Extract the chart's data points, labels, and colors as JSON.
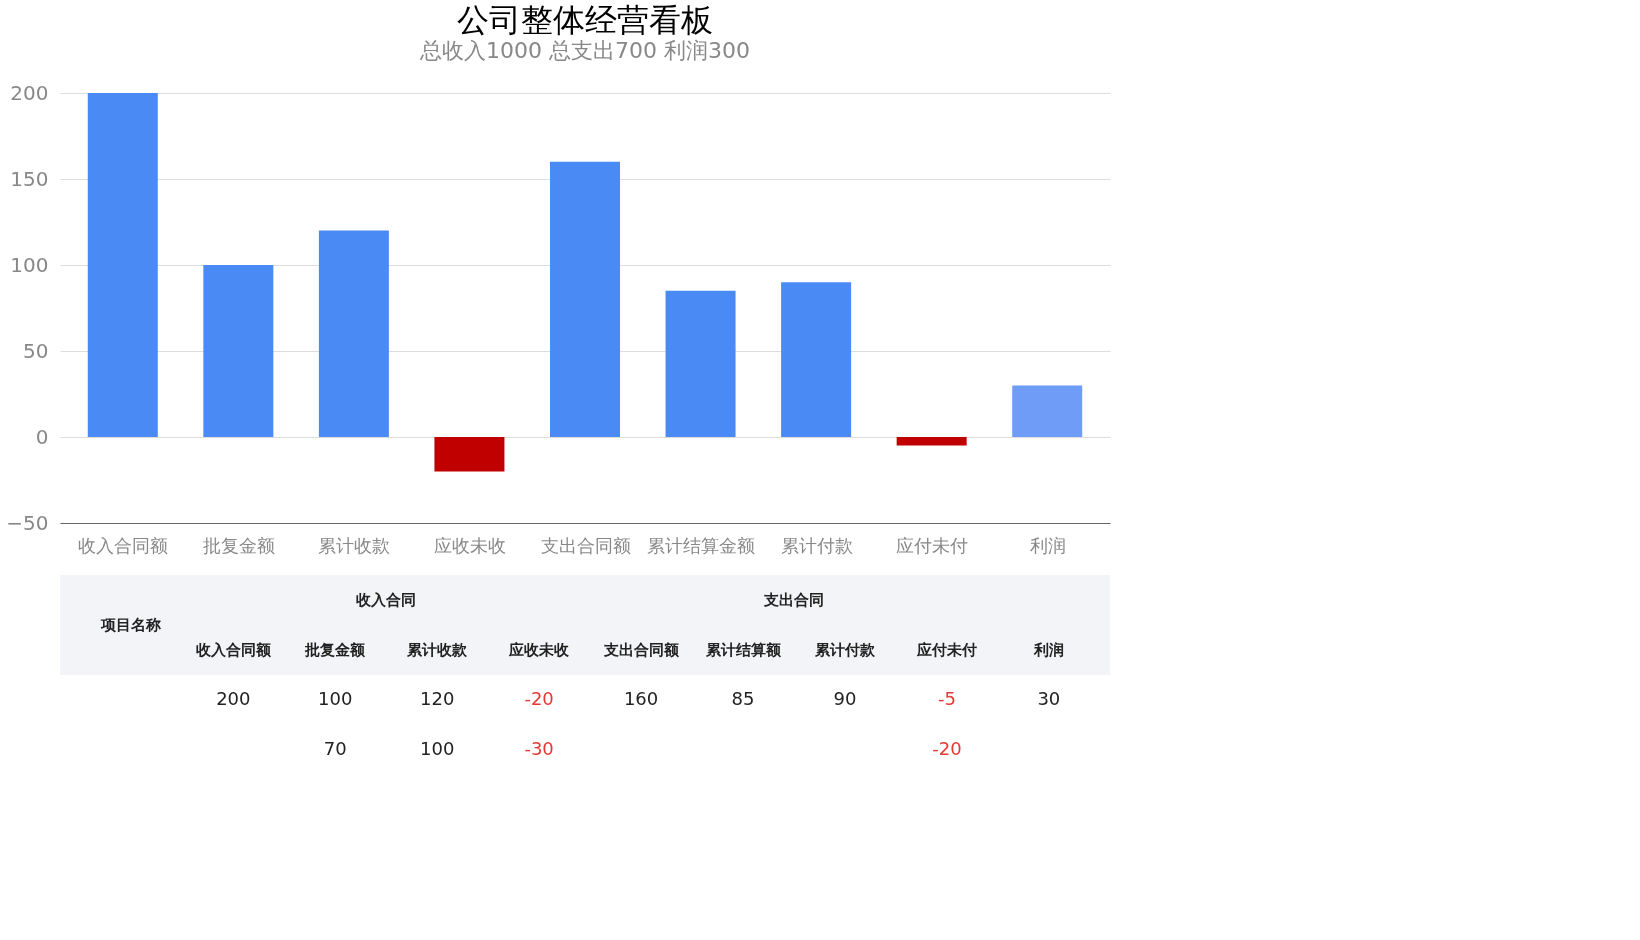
{
  "chart_data": [
    {
      "type": "bar",
      "title": "公司整体经营看板",
      "subtitle": "总收入1000    总支出700    利润300",
      "categories": [
        "收入合同额",
        "批复金额",
        "累计收款",
        "应收未收",
        "支出合同额",
        "累计结算金额",
        "累计付款",
        "应付未付",
        "利润"
      ],
      "values": [
        200,
        100,
        120,
        -20,
        160,
        85,
        90,
        -5,
        30
      ],
      "colors": [
        "#4a8af4",
        "#4a8af4",
        "#4a8af4",
        "#c00000",
        "#4a8af4",
        "#4a8af4",
        "#4a8af4",
        "#c00000",
        "#6e9cf7"
      ],
      "ylim": [
        -50,
        200
      ],
      "yticks": [
        -50,
        0,
        50,
        100,
        150,
        200
      ],
      "grid": "y"
    },
    {
      "type": "other",
      "annotations": [
        "项目名称",
        "收入合同",
        "支出合同"
      ],
      "categories": [
        "收入合同额",
        "批复金额",
        "累计收款",
        "应收未收",
        "支出合同额",
        "累计结算额",
        "累计付款",
        "应付未付",
        "利润"
      ],
      "series": [
        {
          "values": [
            200,
            100,
            120,
            -20,
            160,
            85,
            90,
            -5,
            30
          ]
        },
        {
          "values": [
            null,
            70,
            100,
            -30,
            null,
            null,
            null,
            -20,
            null
          ]
        }
      ],
      "data_labels": true
    }
  ]
}
